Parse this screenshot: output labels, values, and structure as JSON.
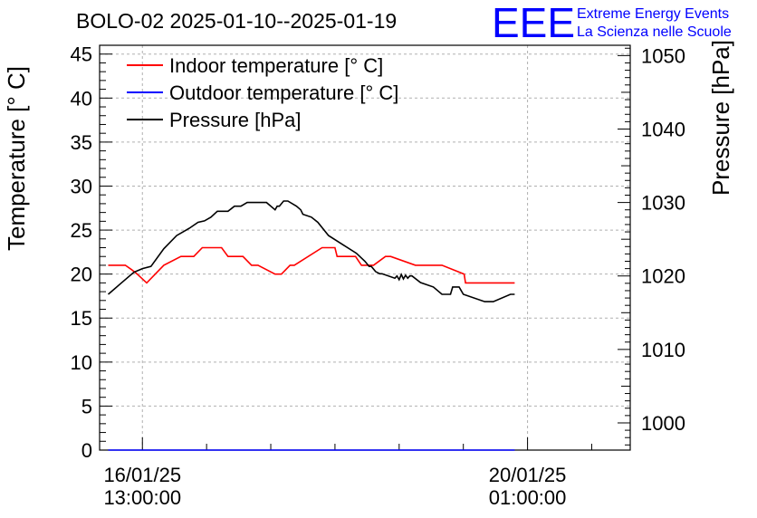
{
  "chart_data": {
    "type": "line",
    "title": "BOLO-02 2025-01-10--2025-01-19",
    "xlabel": "",
    "ylabel": "Temperature [° C]",
    "y2label": "Pressure [hPa]",
    "ylim": [
      0,
      46
    ],
    "y2lim": [
      996.3,
      1051.4
    ],
    "xlim": [
      -100,
      1140
    ],
    "yticks": [
      0,
      5,
      10,
      15,
      20,
      25,
      30,
      35,
      40,
      45
    ],
    "y2ticks": [
      1000,
      1010,
      1020,
      1030,
      1040,
      1050
    ],
    "xticks": [
      {
        "x": 0,
        "line1": "16/01/25",
        "line2": "13:00:00"
      },
      {
        "x": 900,
        "line1": "20/01/25",
        "line2": "01:00:00"
      }
    ],
    "legend": [
      {
        "label": "Indoor temperature [° C]",
        "color": "#ff0000"
      },
      {
        "label": "Outdoor temperature [° C]",
        "color": "#0000ff"
      },
      {
        "label": "Pressure [hPa]",
        "color": "#000000"
      }
    ],
    "logo": {
      "mark": "EEE",
      "line1": "Extreme Energy Events",
      "line2": "La Scienza nelle Scuole",
      "color": "#0000ff"
    },
    "series": [
      {
        "name": "Indoor temperature [° C]",
        "axis": "left",
        "color": "#ff0000",
        "x": [
          -80,
          -40,
          -25,
          -12,
          10,
          50,
          90,
          94,
          120,
          140,
          185,
          200,
          235,
          255,
          270,
          310,
          325,
          345,
          355,
          420,
          450,
          455,
          498,
          512,
          540,
          568,
          580,
          638,
          655,
          700,
          752,
          755,
          800,
          870
        ],
        "y": [
          21,
          21,
          20.5,
          20,
          19,
          21,
          22,
          22,
          22,
          23,
          23,
          22,
          22,
          21,
          21,
          20,
          20,
          21,
          21,
          23,
          23,
          22,
          22,
          21,
          21,
          22,
          22,
          21,
          21,
          21,
          20,
          19,
          19,
          19
        ]
      },
      {
        "name": "Outdoor temperature [° C]",
        "axis": "left",
        "color": "#0000ff",
        "x": [
          -80,
          870
        ],
        "y": [
          0,
          0
        ]
      },
      {
        "name": "Pressure [hPa]",
        "axis": "right",
        "color": "#000000",
        "x": [
          -80,
          -50,
          -20,
          0,
          20,
          50,
          80,
          110,
          130,
          145,
          160,
          175,
          200,
          215,
          230,
          245,
          290,
          310,
          315,
          320,
          330,
          340,
          360,
          370,
          375,
          395,
          410,
          435,
          470,
          500,
          520,
          530,
          535,
          545,
          555,
          560,
          590,
          595,
          600,
          605,
          610,
          615,
          620,
          625,
          630,
          650,
          680,
          700,
          720,
          725,
          740,
          750,
          800,
          820,
          860,
          870
        ],
        "y": [
          1017.5,
          1019,
          1020.5,
          1021,
          1021.3,
          1023.7,
          1025.5,
          1026.5,
          1027.3,
          1027.5,
          1028,
          1028.8,
          1028.8,
          1029.5,
          1029.5,
          1030,
          1030,
          1029,
          1029.5,
          1029.5,
          1030.2,
          1030.2,
          1029.5,
          1029,
          1028.4,
          1028,
          1027.3,
          1025.5,
          1024.2,
          1023.1,
          1022,
          1021.3,
          1021.3,
          1020.6,
          1020.3,
          1020.3,
          1019.7,
          1020,
          1019.5,
          1020.2,
          1019.6,
          1020.1,
          1019.7,
          1020,
          1020,
          1019.1,
          1018.5,
          1017.5,
          1017.5,
          1018.5,
          1018.5,
          1017.5,
          1016.5,
          1016.5,
          1017.5,
          1017.5
        ]
      }
    ]
  }
}
